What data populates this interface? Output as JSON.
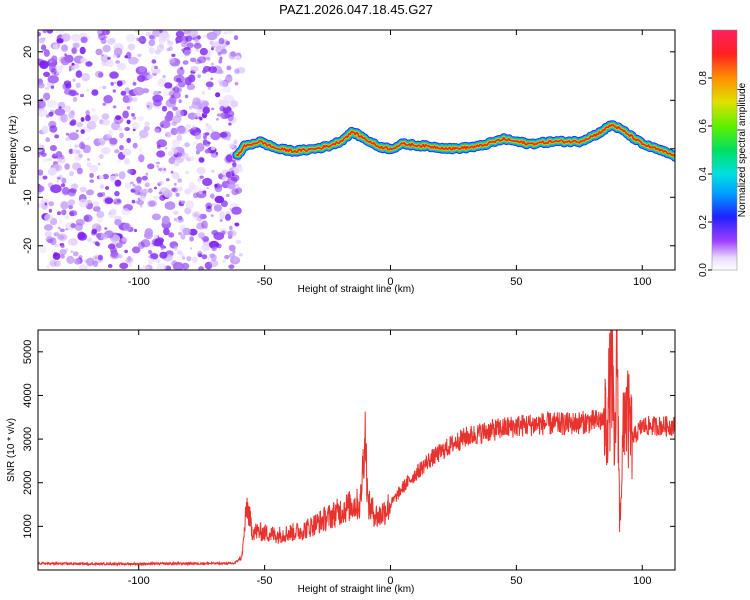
{
  "figure_title": "PAZ1.2026.047.18.45.G27",
  "chart_data": [
    {
      "type": "heatmap",
      "name": "spectrogram",
      "xlabel": "Height of straight line (km)",
      "ylabel": "Frequency (Hz)",
      "xlim": [
        -140,
        113
      ],
      "ylim": [
        -25,
        24.5
      ],
      "xticks": [
        -100,
        -50,
        0,
        50,
        100
      ],
      "yticks": [
        -20,
        -10,
        0,
        10,
        20
      ],
      "noise_region_km": [
        -140,
        -61
      ],
      "ridge": [
        {
          "x": -61,
          "y": -1.5
        },
        {
          "x": -58,
          "y": 0.5
        },
        {
          "x": -52,
          "y": 1.5
        },
        {
          "x": -45,
          "y": 0
        },
        {
          "x": -38,
          "y": -0.5
        },
        {
          "x": -30,
          "y": 0
        },
        {
          "x": -25,
          "y": 0.5
        },
        {
          "x": -20,
          "y": 1.5
        },
        {
          "x": -15,
          "y": 3.5
        },
        {
          "x": -10,
          "y": 2
        },
        {
          "x": -5,
          "y": 0.5
        },
        {
          "x": 0,
          "y": 0
        },
        {
          "x": 5,
          "y": 1
        },
        {
          "x": 15,
          "y": 0.5
        },
        {
          "x": 25,
          "y": 0
        },
        {
          "x": 35,
          "y": 0.5
        },
        {
          "x": 45,
          "y": 2
        },
        {
          "x": 55,
          "y": 1
        },
        {
          "x": 65,
          "y": 1.5
        },
        {
          "x": 75,
          "y": 1.5
        },
        {
          "x": 82,
          "y": 3
        },
        {
          "x": 88,
          "y": 5
        },
        {
          "x": 93,
          "y": 3.5
        },
        {
          "x": 100,
          "y": 1
        },
        {
          "x": 108,
          "y": -0.5
        },
        {
          "x": 113,
          "y": -1.5
        }
      ]
    },
    {
      "type": "line",
      "name": "snr",
      "xlabel": "Height of straight line (km)",
      "ylabel": "SNR (10 * v/v)",
      "xlim": [
        -140,
        113
      ],
      "ylim": [
        0,
        5500
      ],
      "xticks": [
        -100,
        -50,
        0,
        50,
        100
      ],
      "yticks": [
        1000,
        2000,
        3000,
        4000,
        5000
      ],
      "series": [
        {
          "name": "SNR",
          "color": "#e8322e",
          "points": [
            {
              "x": -140,
              "y": 150
            },
            {
              "x": -120,
              "y": 140
            },
            {
              "x": -100,
              "y": 140
            },
            {
              "x": -80,
              "y": 150
            },
            {
              "x": -62,
              "y": 150
            },
            {
              "x": -59,
              "y": 300
            },
            {
              "x": -57,
              "y": 1500
            },
            {
              "x": -55,
              "y": 900
            },
            {
              "x": -50,
              "y": 850
            },
            {
              "x": -45,
              "y": 800
            },
            {
              "x": -40,
              "y": 850
            },
            {
              "x": -35,
              "y": 900
            },
            {
              "x": -30,
              "y": 1050
            },
            {
              "x": -25,
              "y": 1200
            },
            {
              "x": -20,
              "y": 1350
            },
            {
              "x": -15,
              "y": 1500
            },
            {
              "x": -12,
              "y": 1500
            },
            {
              "x": -10,
              "y": 3200
            },
            {
              "x": -9,
              "y": 1500
            },
            {
              "x": -5,
              "y": 1200
            },
            {
              "x": 0,
              "y": 1500
            },
            {
              "x": 5,
              "y": 1900
            },
            {
              "x": 10,
              "y": 2200
            },
            {
              "x": 15,
              "y": 2500
            },
            {
              "x": 20,
              "y": 2700
            },
            {
              "x": 25,
              "y": 2900
            },
            {
              "x": 30,
              "y": 3050
            },
            {
              "x": 40,
              "y": 3200
            },
            {
              "x": 50,
              "y": 3300
            },
            {
              "x": 60,
              "y": 3350
            },
            {
              "x": 70,
              "y": 3350
            },
            {
              "x": 80,
              "y": 3400
            },
            {
              "x": 86,
              "y": 3450
            },
            {
              "x": 88,
              "y": 4700
            },
            {
              "x": 89,
              "y": 2300
            },
            {
              "x": 90,
              "y": 5400
            },
            {
              "x": 91,
              "y": 1100
            },
            {
              "x": 93,
              "y": 3800
            },
            {
              "x": 96,
              "y": 3000
            },
            {
              "x": 100,
              "y": 3300
            },
            {
              "x": 105,
              "y": 3300
            },
            {
              "x": 113,
              "y": 3300
            }
          ]
        }
      ]
    }
  ],
  "colorbar": {
    "label": "Normalized spectral amplitude",
    "ticks": [
      "0.0",
      "0.2",
      "0.4",
      "0.6",
      "0.8"
    ]
  }
}
